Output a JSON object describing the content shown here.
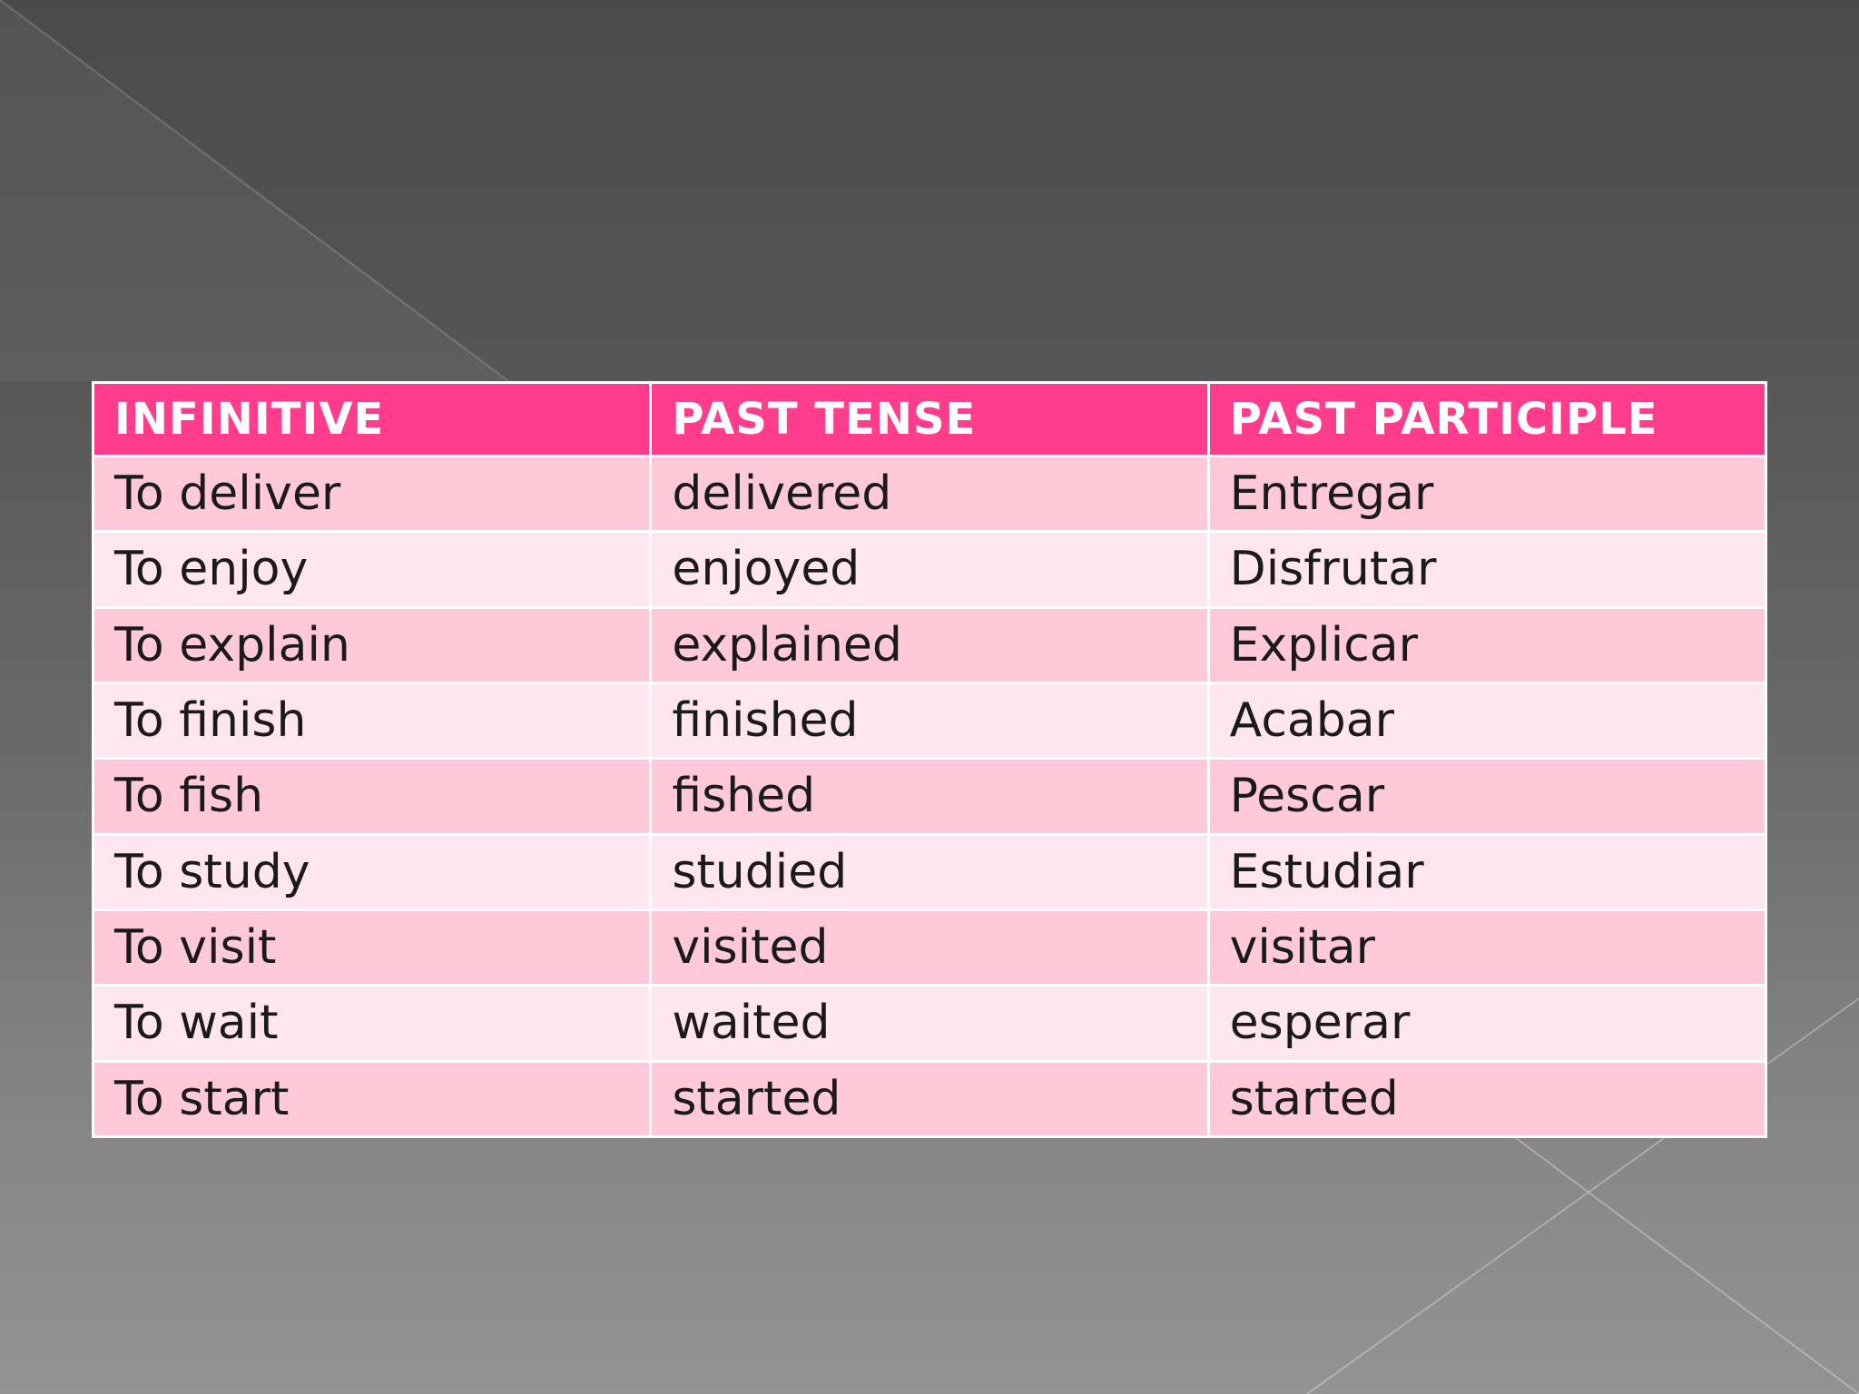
{
  "table": {
    "headers": [
      "INFINITIVE",
      "PAST TENSE",
      "PAST PARTICIPLE"
    ],
    "rows": [
      [
        "To deliver",
        "delivered",
        "Entregar"
      ],
      [
        "To enjoy",
        "enjoyed",
        "Disfrutar"
      ],
      [
        "To explain",
        "explained",
        "Explicar"
      ],
      [
        "To finish",
        "finished",
        "Acabar"
      ],
      [
        "To fish",
        "fished",
        "Pescar"
      ],
      [
        "To study",
        "studied",
        "Estudiar"
      ],
      [
        "To visit",
        "visited",
        "visitar"
      ],
      [
        "To wait",
        "waited",
        "esperar"
      ],
      [
        "To start",
        "started",
        "started"
      ]
    ]
  },
  "colors": {
    "header_bg": "#ff3d8c",
    "row_odd_bg": "#ffc9da",
    "row_even_bg": "#ffe5ed",
    "slide_bg_top": "#4b4b4b",
    "slide_bg_bottom": "#939393"
  }
}
